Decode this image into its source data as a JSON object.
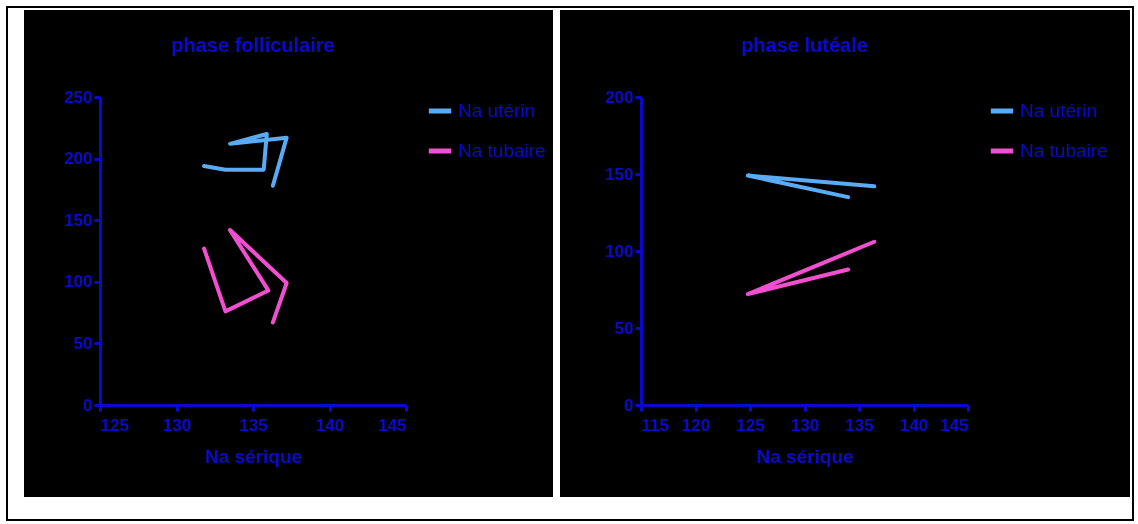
{
  "chart_data": [
    {
      "type": "line",
      "title": "phase folliculaire",
      "xlabel": "Na sérique",
      "xlim": [
        125,
        145
      ],
      "xticks": [
        125,
        130,
        135,
        140,
        145
      ],
      "ylim": [
        0,
        250
      ],
      "yticks": [
        0,
        50,
        100,
        150,
        200,
        250
      ],
      "grid": false,
      "legend": "top right",
      "series": [
        {
          "name": "Na utérin",
          "color": "#5aabf5",
          "x": [
            131.8,
            133.2,
            135.7,
            135.9,
            133.5,
            137.2,
            136.3
          ],
          "values": [
            194,
            191,
            191,
            220,
            212,
            217,
            178
          ]
        },
        {
          "name": "Na tubaire",
          "color": "#f24fd0",
          "x": [
            131.8,
            133.2,
            136.0,
            133.5,
            137.2,
            136.3
          ],
          "values": [
            127,
            76,
            93,
            142,
            99,
            67
          ]
        }
      ]
    },
    {
      "type": "line",
      "title": "phase lutéale",
      "xlabel": "Na sérique",
      "xlim": [
        115,
        145
      ],
      "xticks": [
        115,
        120,
        125,
        130,
        135,
        140,
        145
      ],
      "ylim": [
        0,
        200
      ],
      "yticks": [
        0,
        50,
        100,
        150,
        200
      ],
      "grid": false,
      "legend": "top right",
      "series": [
        {
          "name": "Na utérin",
          "color": "#5aabf5",
          "x": [
            134.0,
            124.8,
            136.4
          ],
          "values": [
            135,
            149,
            142
          ]
        },
        {
          "name": "Na tubaire",
          "color": "#f24fd0",
          "x": [
            134.0,
            124.8,
            136.4
          ],
          "values": [
            88,
            72,
            106
          ]
        }
      ]
    }
  ]
}
